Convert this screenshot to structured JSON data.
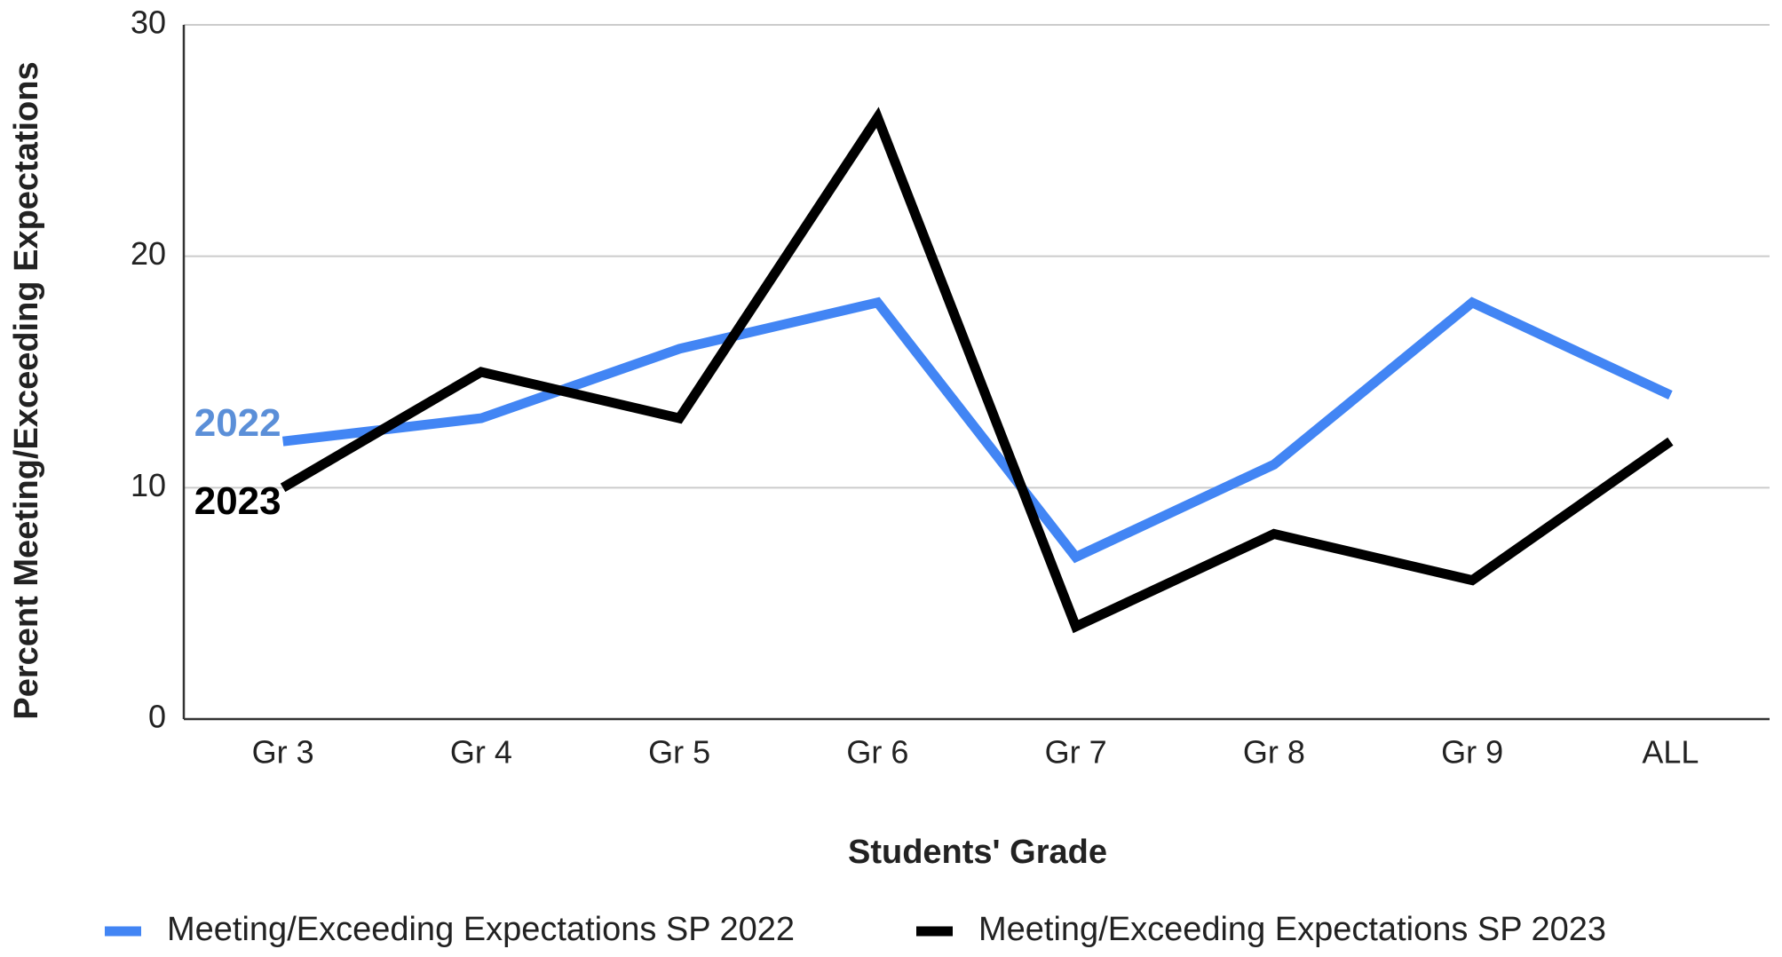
{
  "chart_data": {
    "type": "line",
    "x_label": "Students' Grade",
    "y_label": "Percent Meeting/Exceeding Expectations",
    "categories": [
      "Gr 3",
      "Gr 4",
      "Gr 5",
      "Gr 6",
      "Gr 7",
      "Gr 8",
      "Gr 9",
      "ALL"
    ],
    "series": [
      {
        "name": "Meeting/Exceeding Expectations SP 2022",
        "color": "#4285f4",
        "values": [
          12,
          13,
          16,
          18,
          7,
          11,
          18,
          14
        ]
      },
      {
        "name": "Meeting/Exceeding Expectations SP 2023",
        "color": "#000000",
        "values": [
          10,
          15,
          13,
          26,
          4,
          8,
          6,
          12
        ]
      }
    ],
    "annotations": [
      {
        "text": "2022",
        "color": "#5b8fd8"
      },
      {
        "text": "2023",
        "color": "#000000"
      }
    ],
    "ylim": [
      0,
      30
    ],
    "yticks": [
      0,
      10,
      20,
      30
    ],
    "grid": true,
    "legend": "bottom"
  }
}
